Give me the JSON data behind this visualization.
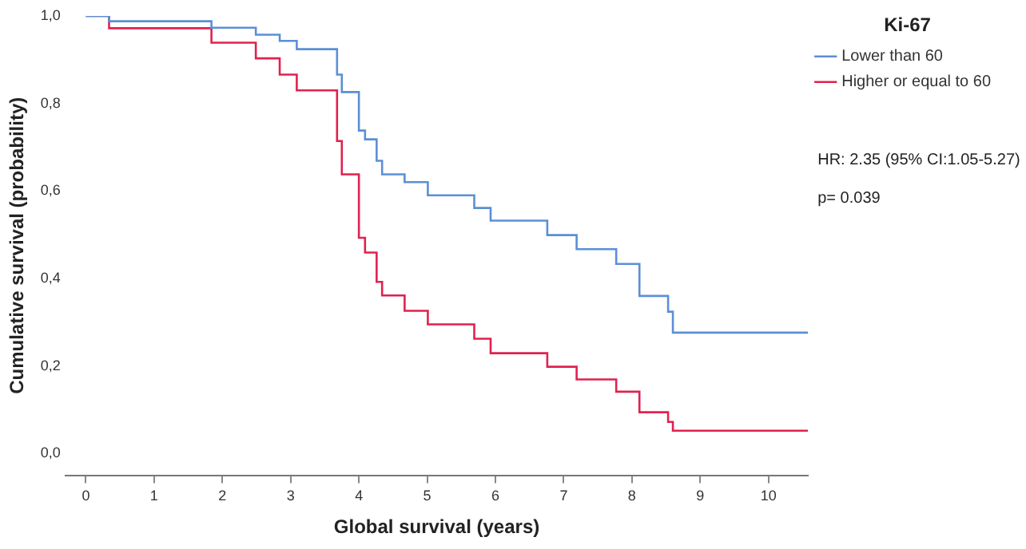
{
  "chart_data": {
    "type": "step",
    "legend_title": "Ki-67",
    "xlabel": "Global survival (years)",
    "ylabel": "Cumulative survival (probability)",
    "annotations": [
      "HR: 2.35 (95% CI:1.05-5.27)",
      "p= 0.039"
    ],
    "xlim": [
      -0.3,
      10.58
    ],
    "xticks": [
      0,
      1,
      2,
      3,
      4,
      5,
      6,
      7,
      8,
      9,
      10
    ],
    "ylim": [
      -0.05,
      1
    ],
    "yticks": [
      {
        "value": 0,
        "label": "0,0"
      },
      {
        "value": 0.2,
        "label": "0,2"
      },
      {
        "value": 0.4,
        "label": "0,4"
      },
      {
        "value": 0.6,
        "label": "0,6"
      },
      {
        "value": 0.8,
        "label": "0,8"
      },
      {
        "value": 1,
        "label": "1,0"
      }
    ],
    "grid": false,
    "legend": "top right",
    "marker": "none",
    "line_style": "solid",
    "series": [
      {
        "name": "Lower than 60",
        "color": "#5b8fd6",
        "x": [
          0,
          0.34,
          1.84,
          2.49,
          2.84,
          3.09,
          3.68,
          3.75,
          4.0,
          4.09,
          4.26,
          4.34,
          4.67,
          5.01,
          5.69,
          5.93,
          6.76,
          7.19,
          7.77,
          8.11,
          8.53,
          8.6,
          10.58
        ],
        "values": [
          1,
          0.988,
          0.973,
          0.957,
          0.943,
          0.924,
          0.866,
          0.826,
          0.738,
          0.718,
          0.669,
          0.638,
          0.62,
          0.59,
          0.561,
          0.532,
          0.499,
          0.467,
          0.433,
          0.36,
          0.324,
          0.276,
          0.276
        ]
      },
      {
        "name": "Higher or equal to 60",
        "color": "#e0214f",
        "x": [
          0,
          0.34,
          1.84,
          2.49,
          2.84,
          3.09,
          3.68,
          3.75,
          4.0,
          4.09,
          4.26,
          4.34,
          4.67,
          5.01,
          5.69,
          5.93,
          6.76,
          7.19,
          7.77,
          8.11,
          8.53,
          8.6,
          10.58
        ],
        "values": [
          1,
          0.972,
          0.939,
          0.903,
          0.866,
          0.83,
          0.714,
          0.638,
          0.493,
          0.459,
          0.392,
          0.361,
          0.326,
          0.295,
          0.262,
          0.229,
          0.198,
          0.169,
          0.141,
          0.094,
          0.072,
          0.052,
          0.052
        ]
      }
    ]
  }
}
